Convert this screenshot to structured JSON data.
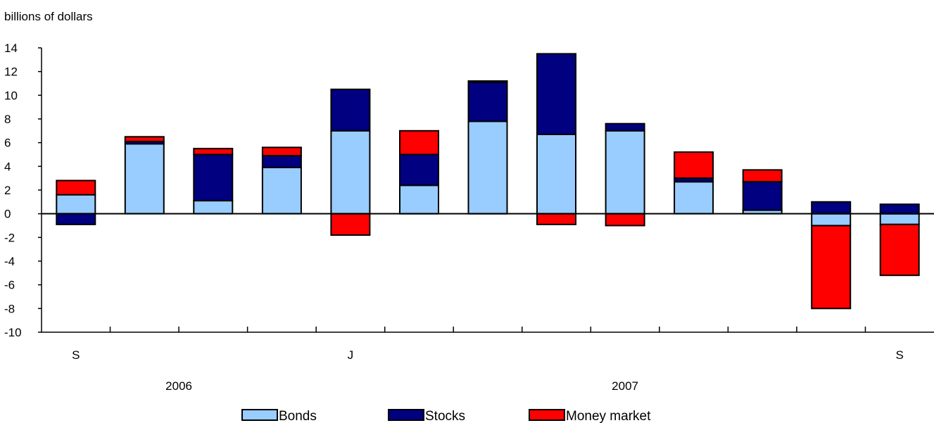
{
  "chart_data": {
    "type": "bar",
    "stacked": true,
    "ylabel": "billions of dollars",
    "ylim": [
      -10,
      14
    ],
    "yticks": [
      14,
      12,
      10,
      8,
      6,
      4,
      2,
      0,
      -2,
      -4,
      -6,
      -8,
      -10
    ],
    "grid": false,
    "legend_position": "bottom",
    "x_tick_labels": [
      "S",
      "",
      "",
      "",
      "J",
      "",
      "",
      "",
      "",
      "",
      "",
      "",
      "S"
    ],
    "year_labels": [
      {
        "label": "2006",
        "category_index": 1.5
      },
      {
        "label": "2007",
        "category_index": 8
      }
    ],
    "series": [
      {
        "name": "Bonds",
        "color": "#99ccff",
        "values": [
          1.6,
          5.9,
          1.1,
          3.9,
          7.0,
          2.4,
          7.8,
          6.7,
          7.0,
          2.7,
          0.3,
          -1.0,
          -0.9
        ]
      },
      {
        "name": "Stocks",
        "color": "#000080",
        "values": [
          -0.9,
          0.2,
          3.9,
          1.0,
          3.5,
          2.6,
          3.3,
          6.8,
          0.6,
          0.3,
          2.4,
          1.0,
          0.8
        ]
      },
      {
        "name": "Money market",
        "color": "#ff0000",
        "values": [
          1.2,
          0.4,
          0.5,
          0.7,
          -1.8,
          2.0,
          0.1,
          -0.9,
          -1.0,
          2.2,
          1.0,
          -7.0,
          -4.3
        ]
      }
    ]
  }
}
